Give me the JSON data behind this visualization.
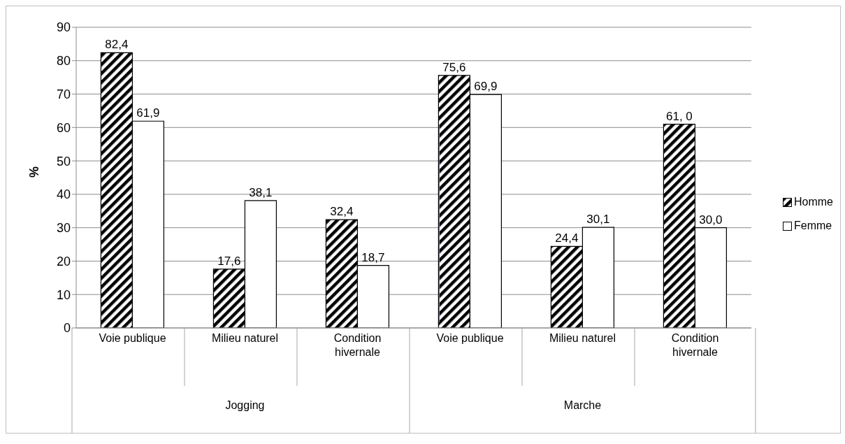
{
  "chart_data": {
    "type": "bar",
    "ylabel": "%",
    "categories": [
      "Voie publique",
      "Milieu naturel",
      "Condition hivernale",
      "Voie publique",
      "Milieu naturel",
      "Condition hivernale"
    ],
    "series": [
      {
        "name": "Homme",
        "color": "#000000",
        "values": [
          82.4,
          17.6,
          32.4,
          75.6,
          24.4,
          61.0
        ],
        "value_labels": [
          "82,4",
          "17,6",
          "32,4",
          "75,6",
          "24,4",
          "61, 0"
        ]
      },
      {
        "name": "Femme",
        "color": "#ffffff",
        "values": [
          61.9,
          38.1,
          18.7,
          69.9,
          30.1,
          30.0
        ],
        "value_labels": [
          "61,9",
          "38,1",
          "18,7",
          "69,9",
          "30,1",
          "30,0"
        ]
      }
    ],
    "annotations": [
      "Jogging",
      "Marche"
    ],
    "ylim": [
      0,
      90
    ],
    "yticks": [
      0,
      10,
      20,
      30,
      40,
      50,
      60,
      70,
      80,
      90
    ],
    "grid": "y",
    "legend": "right"
  }
}
